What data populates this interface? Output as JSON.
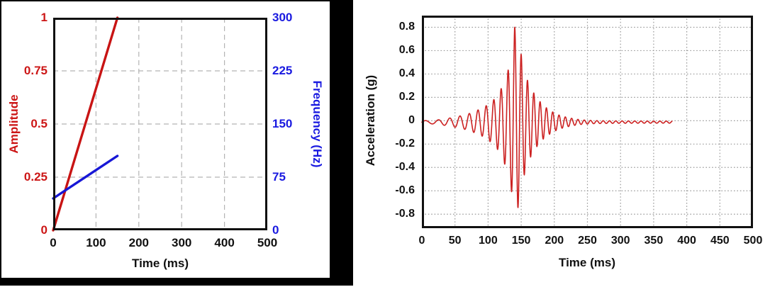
{
  "page": {
    "background": "#ffffff",
    "frame_color": "#000000"
  },
  "chart_data": [
    {
      "id": "sine-sweep-profile",
      "type": "line",
      "title": "",
      "x_axis": {
        "label": "Time (ms)",
        "range": [
          0,
          500
        ],
        "ticks": [
          0,
          100,
          200,
          300,
          400,
          500
        ],
        "tick_labels": [
          "0",
          "100",
          "200",
          "300",
          "400",
          "500"
        ]
      },
      "y_left_axis": {
        "label": "Amplitude",
        "color": "#cc1616",
        "range": [
          0,
          1
        ],
        "ticks": [
          0,
          0.25,
          0.5,
          0.75,
          1
        ],
        "tick_labels": [
          "0",
          "0.25",
          "0.5",
          "0.75",
          "1"
        ]
      },
      "y_right_axis": {
        "label": "Frequency (Hz)",
        "color": "#1a1ae0",
        "range": [
          0,
          300
        ],
        "ticks": [
          0,
          75,
          150,
          225,
          300
        ],
        "tick_labels": [
          "0",
          "75",
          "150",
          "225",
          "300"
        ]
      },
      "grid": {
        "style": "dashed",
        "color": "#b4b4b4"
      },
      "legend": "none",
      "series": [
        {
          "name": "amplitude-ramp",
          "axis": "left",
          "color": "#c81414",
          "x": [
            0,
            150
          ],
          "y": [
            0,
            1
          ]
        },
        {
          "name": "frequency-sweep",
          "axis": "right",
          "color": "#1717d6",
          "x": [
            0,
            150
          ],
          "y": [
            45,
            105
          ]
        }
      ]
    },
    {
      "id": "acceleration-response",
      "type": "line",
      "title": "",
      "x_axis": {
        "label": "Time (ms)",
        "range": [
          0,
          500
        ],
        "ticks": [
          0,
          50,
          100,
          150,
          200,
          250,
          300,
          350,
          400,
          450,
          500
        ],
        "tick_labels": [
          "0",
          "50",
          "100",
          "150",
          "200",
          "250",
          "300",
          "350",
          "400",
          "450",
          "500"
        ]
      },
      "y_axis": {
        "label": "Acceleration (g)",
        "range": [
          -0.92,
          0.9
        ],
        "ticks": [
          0.8,
          0.6,
          0.4,
          0.2,
          0,
          -0.2,
          -0.4,
          -0.6,
          -0.8
        ],
        "tick_labels": [
          "0.8",
          "0.6",
          "0.4",
          "0.2",
          "0",
          "-0.2",
          "-0.4",
          "-0.6",
          "-0.8"
        ]
      },
      "grid": {
        "style": "dotted",
        "color": "#9b9b9b"
      },
      "legend": "none",
      "series": [
        {
          "name": "acceleration-burst",
          "color": "#cc2222",
          "peak_g": 0.82,
          "peak_t_ms": 140,
          "min_g": -0.75,
          "min_t_ms": 145,
          "signal": {
            "t_start_ms": 0,
            "t_end_ms": 378,
            "baseline_g": -0.012,
            "sweep": {
              "t_ms": [
                0,
                150
              ],
              "freq_hz": [
                45,
                105
              ]
            },
            "envelope_g": [
              [
                0,
                0.012
              ],
              [
                15,
                0.015
              ],
              [
                25,
                0.02
              ],
              [
                35,
                0.028
              ],
              [
                45,
                0.038
              ],
              [
                55,
                0.05
              ],
              [
                65,
                0.062
              ],
              [
                75,
                0.08
              ],
              [
                85,
                0.105
              ],
              [
                95,
                0.13
              ],
              [
                100,
                0.155
              ],
              [
                105,
                0.175
              ],
              [
                110,
                0.2
              ],
              [
                115,
                0.24
              ],
              [
                120,
                0.29
              ],
              [
                125,
                0.36
              ],
              [
                130,
                0.44
              ],
              [
                134,
                0.54
              ],
              [
                137,
                0.66
              ],
              [
                140,
                0.82
              ],
              [
                142,
                0.78
              ],
              [
                145,
                0.74
              ],
              [
                148,
                0.64
              ],
              [
                152,
                0.52
              ],
              [
                156,
                0.42
              ],
              [
                160,
                0.35
              ],
              [
                165,
                0.29
              ],
              [
                170,
                0.24
              ],
              [
                175,
                0.2
              ],
              [
                180,
                0.165
              ],
              [
                185,
                0.135
              ],
              [
                190,
                0.115
              ],
              [
                195,
                0.095
              ],
              [
                200,
                0.08
              ],
              [
                205,
                0.065
              ],
              [
                210,
                0.055
              ],
              [
                215,
                0.047
              ],
              [
                220,
                0.04
              ],
              [
                225,
                0.034
              ],
              [
                230,
                0.028
              ],
              [
                235,
                0.024
              ],
              [
                240,
                0.02
              ],
              [
                250,
                0.016
              ],
              [
                260,
                0.013
              ],
              [
                280,
                0.011
              ],
              [
                300,
                0.01
              ],
              [
                340,
                0.009
              ],
              [
                380,
                0.009
              ]
            ]
          }
        }
      ]
    }
  ]
}
